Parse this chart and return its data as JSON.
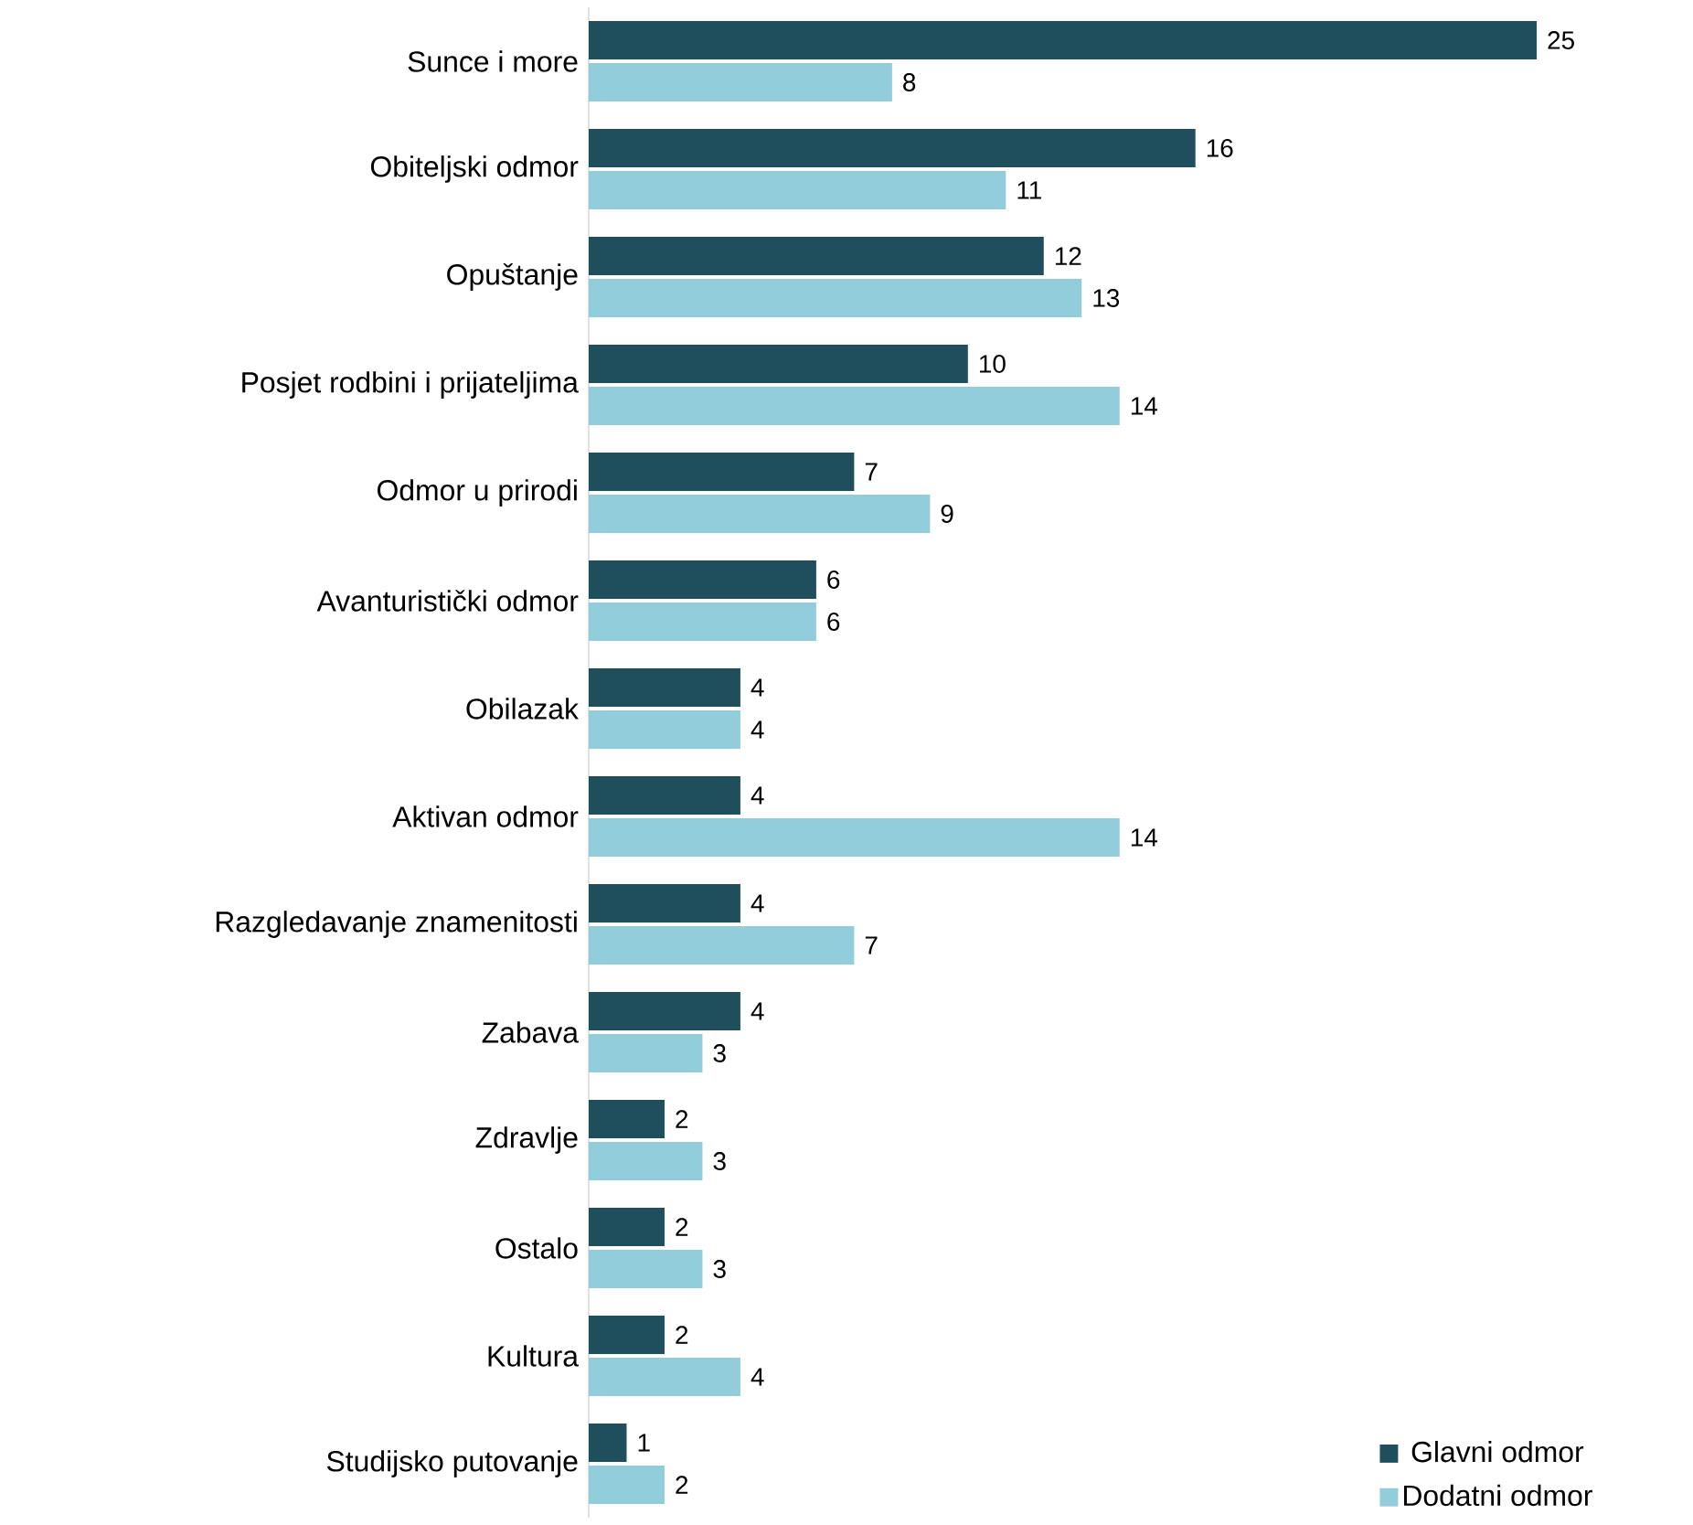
{
  "chart_data": {
    "type": "bar",
    "orientation": "horizontal",
    "data_labels": true,
    "legend": "bottom right",
    "categories": [
      "Sunce i more",
      "Obiteljski odmor",
      "Opuštanje",
      "Posjet rodbini i prijateljima",
      "Odmor u prirodi",
      "Avanturistički odmor",
      "Obilazak",
      "Aktivan odmor",
      "Razgledavanje znamenitosti",
      "Zabava",
      "Zdravlje",
      "Ostalo",
      "Kultura",
      "Studijsko putovanje"
    ],
    "series": [
      {
        "name": "Glavni odmor",
        "color": "#1f4f5c",
        "values": [
          25,
          16,
          12,
          10,
          7,
          6,
          4,
          4,
          4,
          4,
          2,
          2,
          2,
          1
        ]
      },
      {
        "name": "Dodatni odmor",
        "color": "#92cddc",
        "values": [
          8,
          11,
          13,
          14,
          9,
          6,
          4,
          14,
          7,
          3,
          3,
          3,
          4,
          2
        ]
      }
    ]
  }
}
